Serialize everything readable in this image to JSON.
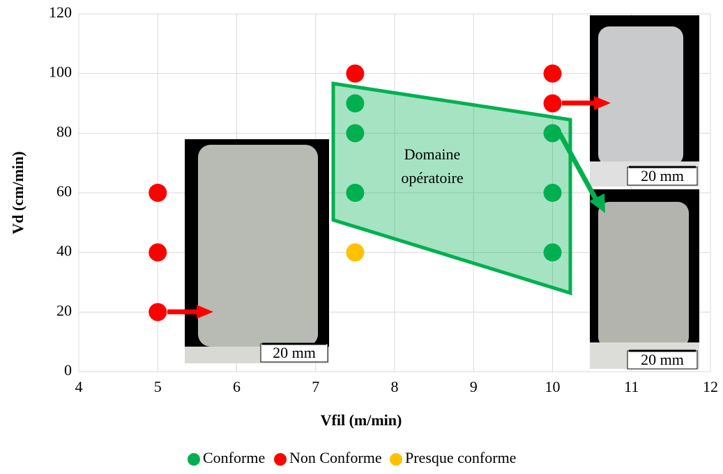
{
  "chart_data": {
    "type": "scatter",
    "x_label": "Vfil (m/min)",
    "y_label": "Vd (cm/min)",
    "xlim": [
      4,
      12
    ],
    "xticks": [
      4,
      5,
      6,
      7,
      8,
      9,
      10,
      11,
      12
    ],
    "ylim": [
      0,
      120
    ],
    "yticks": [
      0,
      20,
      40,
      60,
      80,
      100,
      120
    ],
    "grid": true,
    "legend": "bottom",
    "annotation": [
      "Domaine",
      "opératoire"
    ],
    "image_labels": [
      "20 mm",
      "20 mm",
      "20 mm"
    ],
    "series": [
      {
        "name": "Conforme",
        "color": "#00b050",
        "x": [
          7.5,
          7.5,
          7.5,
          10,
          10,
          10
        ],
        "values": [
          90,
          80,
          60,
          80,
          60,
          40
        ]
      },
      {
        "name": "Non Conforme",
        "color": "#ff0000",
        "x": [
          5,
          5,
          5,
          7.5,
          10,
          10
        ],
        "values": [
          60,
          40,
          20,
          100,
          100,
          90
        ]
      },
      {
        "name": "Presque conforme",
        "color": "#ffc000",
        "x": [
          7.5
        ],
        "values": [
          40
        ]
      }
    ]
  }
}
